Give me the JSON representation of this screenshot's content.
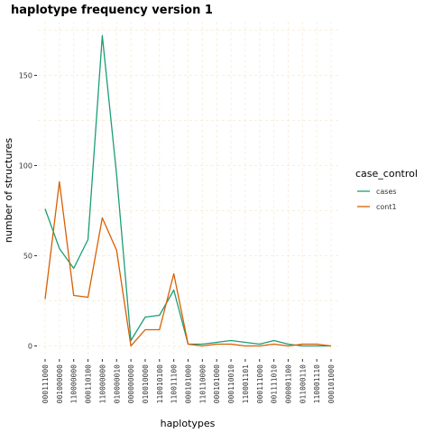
{
  "chart_data": {
    "type": "line",
    "title": "haplotype frequency version 1",
    "xlabel": "haplotypes",
    "ylabel": "number of structures",
    "ylim": [
      -7,
      180
    ],
    "yticks": [
      0,
      50,
      100,
      150
    ],
    "categories": [
      "000111000",
      "001000000",
      "110000000",
      "000110100",
      "110000000",
      "010000010",
      "000000000",
      "010010000",
      "110010100",
      "110011100",
      "000101000",
      "110110000",
      "000101000",
      "000110010",
      "110001101",
      "000111000",
      "001111010",
      "000001100",
      "011000110",
      "110001110",
      "000101000"
    ],
    "legend_title": "case_control",
    "legend_position": "right",
    "grid": true,
    "series": [
      {
        "name": "cases",
        "color": "#1b9e77",
        "values": [
          76,
          54,
          43,
          59,
          172,
          95,
          3,
          16,
          17,
          31,
          1,
          1,
          2,
          3,
          2,
          1,
          3,
          1,
          0,
          0,
          0
        ]
      },
      {
        "name": "cont1",
        "color": "#d95f02",
        "values": [
          26,
          91,
          28,
          27,
          71,
          53,
          0,
          9,
          9,
          40,
          1,
          0,
          1,
          1,
          0,
          0,
          1,
          0,
          1,
          1,
          0
        ]
      }
    ]
  }
}
